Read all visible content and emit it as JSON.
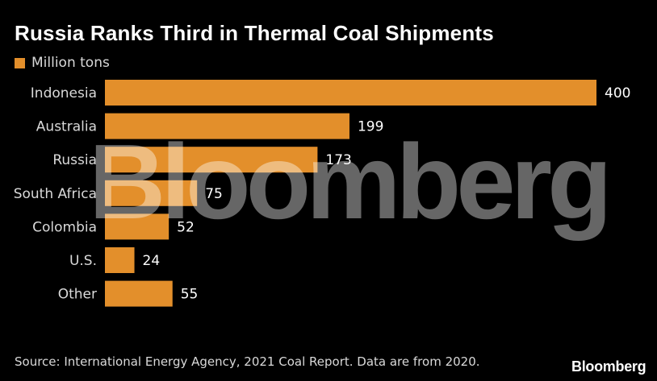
{
  "colors": {
    "background": "#000000",
    "bar": "#e38f2b",
    "text": "#ffffff",
    "muted_text": "#d9d9d9"
  },
  "chart_data": {
    "type": "bar",
    "orientation": "horizontal",
    "title": "Russia Ranks Third in Thermal Coal Shipments",
    "categories": [
      "Indonesia",
      "Australia",
      "Russia",
      "South Africa",
      "Colombia",
      "U.S.",
      "Other"
    ],
    "series": [
      {
        "name": "Million tons",
        "values": [
          400,
          199,
          173,
          75,
          52,
          24,
          55
        ]
      }
    ],
    "xlim": [
      0,
      400
    ],
    "grid": false,
    "legend_position": "top-left",
    "data_labels": true,
    "source": "Source: International Energy Agency, 2021 Coal Report. Data are from 2020."
  },
  "watermark": "Bloomberg",
  "brand": "Bloomberg"
}
